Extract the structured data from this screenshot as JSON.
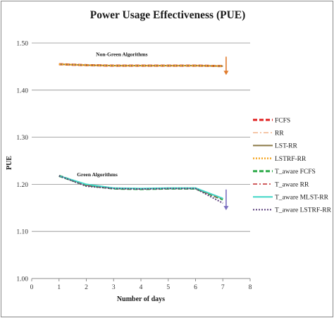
{
  "chart_data": {
    "type": "line",
    "title": "Power Usage Effectiveness (PUE)",
    "xlabel": "Number of days",
    "ylabel": "PUE",
    "xlim": [
      0,
      8
    ],
    "ylim": [
      1.0,
      1.5
    ],
    "xticks": [
      "0",
      "1",
      "2",
      "3",
      "4",
      "5",
      "6",
      "7",
      "8"
    ],
    "yticks": [
      "1.00",
      "1.10",
      "1.20",
      "1.30",
      "1.40",
      "1.50"
    ],
    "x": [
      1,
      2,
      3,
      4,
      5,
      6,
      7
    ],
    "grid": "horizontal",
    "legend_position": "right",
    "annotations": [
      {
        "text": "Non-Green Algorithms",
        "x": 3.3,
        "y": 1.472
      },
      {
        "text": "Green Algorithms",
        "x": 2.4,
        "y": 1.217
      }
    ],
    "arrows": [
      {
        "x": 7.12,
        "y_from": 1.471,
        "y_to": 1.432,
        "color": "#e07b2c"
      },
      {
        "x": 7.12,
        "y_from": 1.189,
        "y_to": 1.145,
        "color": "#7b6fc0"
      }
    ],
    "series": [
      {
        "name": "FCFS",
        "color": "#e02020",
        "dash": "6,3",
        "width": 3,
        "values": [
          1.455,
          1.453,
          1.452,
          1.452,
          1.452,
          1.452,
          1.451
        ]
      },
      {
        "name": "RR",
        "color": "#f2b48c",
        "dash": "7,3,2,3",
        "width": 1.5,
        "values": [
          1.455,
          1.453,
          1.452,
          1.452,
          1.452,
          1.452,
          1.451
        ]
      },
      {
        "name": "LST-RR",
        "color": "#8b7a47",
        "dash": "",
        "width": 2,
        "values": [
          1.455,
          1.453,
          1.452,
          1.452,
          1.452,
          1.452,
          1.451
        ]
      },
      {
        "name": "LSTRF-RR",
        "color": "#f5a623",
        "dash": "2,2",
        "width": 2.5,
        "values": [
          1.455,
          1.453,
          1.452,
          1.452,
          1.452,
          1.452,
          1.451
        ]
      },
      {
        "name": "T_aware  FCFS",
        "color": "#2eaa4a",
        "dash": "6,3",
        "width": 3,
        "values": [
          1.218,
          1.198,
          1.191,
          1.19,
          1.191,
          1.191,
          1.168
        ]
      },
      {
        "name": "T_aware  RR",
        "color": "#c0282a",
        "dash": "6,3,2,3",
        "width": 1.5,
        "values": [
          1.218,
          1.198,
          1.191,
          1.19,
          1.191,
          1.191,
          1.168
        ]
      },
      {
        "name": "T_aware  MLST-RR",
        "color": "#3fd6c6",
        "dash": "",
        "width": 2,
        "values": [
          1.218,
          1.2,
          1.192,
          1.191,
          1.192,
          1.192,
          1.17
        ]
      },
      {
        "name": "T_aware LSTRF-RR",
        "color": "#5a3d7a",
        "dash": "2,2",
        "width": 2,
        "values": [
          1.218,
          1.196,
          1.191,
          1.19,
          1.191,
          1.191,
          1.16
        ]
      }
    ]
  }
}
